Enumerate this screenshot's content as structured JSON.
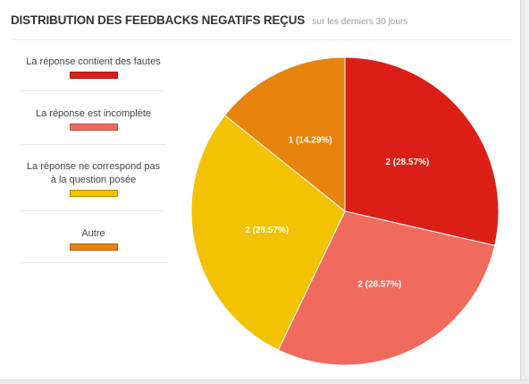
{
  "header": {
    "title": "DISTRIBUTION DES FEEDBACKS NEGATIFS REÇUS",
    "subtitle": "sur les derniers 30 jours"
  },
  "legend": {
    "items": [
      {
        "label": "La réponse contient des fautes",
        "color": "#db1f17"
      },
      {
        "label": "La réponse est incomplète",
        "color": "#f16a5e"
      },
      {
        "label": "La réponse ne correspond pas\nà la question posée",
        "color": "#f3c200"
      },
      {
        "label": "Autre",
        "color": "#e8830d"
      }
    ]
  },
  "chart_data": {
    "type": "pie",
    "title": "DISTRIBUTION DES FEEDBACKS NEGATIFS REÇUS",
    "subtitle": "sur les derniers 30 jours",
    "categories": [
      "La réponse contient des fautes",
      "La réponse est incomplète",
      "La réponse ne correspond pas à la question posée",
      "Autre"
    ],
    "values": [
      2,
      2,
      2,
      1
    ],
    "percentages": [
      28.57,
      28.57,
      28.57,
      14.29
    ],
    "labels": [
      "2 (28.57%)",
      "2 (28.57%)",
      "2 (28.57%)",
      "1 (14.29%)"
    ],
    "colors": [
      "#db1f17",
      "#f16a5e",
      "#f3c200",
      "#e8830d"
    ],
    "legend_position": "left"
  }
}
